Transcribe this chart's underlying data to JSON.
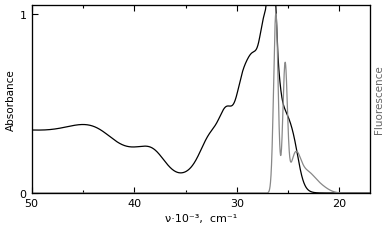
{
  "xlim": [
    50,
    17
  ],
  "ylim": [
    0,
    1.05
  ],
  "xlabel": "ν·10⁻³,  cm⁻¹",
  "ylabel_left": "Absorbance",
  "ylabel_right": "Fluorescence",
  "xticks": [
    50,
    40,
    30,
    20
  ],
  "yticks_left": [
    0,
    1
  ],
  "background_color": "#ffffff",
  "line_color": "#000000",
  "fluor_color": "#888888"
}
